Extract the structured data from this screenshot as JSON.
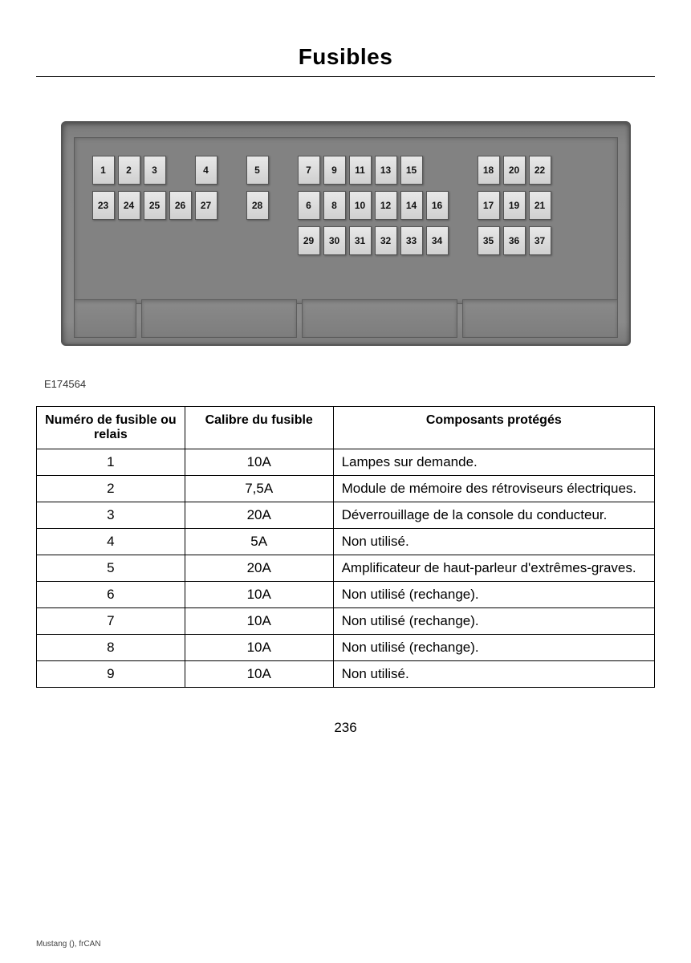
{
  "title": "Fusibles",
  "diagram": {
    "label": "E174564",
    "rows": {
      "top": [
        "1",
        "2",
        "3",
        "",
        "4",
        "",
        "5",
        "",
        "7",
        "9",
        "11",
        "13",
        "15",
        "",
        "",
        "18",
        "20",
        "22"
      ],
      "mid": [
        "23",
        "24",
        "25",
        "26",
        "27",
        "",
        "28",
        "",
        "6",
        "8",
        "10",
        "12",
        "14",
        "16",
        "",
        "17",
        "19",
        "21"
      ],
      "bot": [
        "",
        "",
        "",
        "",
        "",
        "",
        "",
        "",
        "29",
        "30",
        "31",
        "32",
        "33",
        "34",
        "",
        "35",
        "36",
        "37"
      ]
    }
  },
  "table": {
    "headers": {
      "num": "Numéro de fusible ou relais",
      "amp": "Calibre du fusible",
      "comp": "Composants protégés"
    },
    "rows": [
      {
        "num": "1",
        "amp": "10A",
        "comp": "Lampes sur demande."
      },
      {
        "num": "2",
        "amp": "7,5A",
        "comp": "Module de mémoire des rétroviseurs électriques."
      },
      {
        "num": "3",
        "amp": "20A",
        "comp": "Déverrouillage de la console du conducteur."
      },
      {
        "num": "4",
        "amp": "5A",
        "comp": "Non utilisé."
      },
      {
        "num": "5",
        "amp": "20A",
        "comp": "Amplificateur de haut-parleur d'extrêmes-graves."
      },
      {
        "num": "6",
        "amp": "10A",
        "comp": "Non utilisé (rechange)."
      },
      {
        "num": "7",
        "amp": "10A",
        "comp": "Non utilisé (rechange)."
      },
      {
        "num": "8",
        "amp": "10A",
        "comp": "Non utilisé (rechange)."
      },
      {
        "num": "9",
        "amp": "10A",
        "comp": "Non utilisé."
      }
    ]
  },
  "page_number": "236",
  "footer": "Mustang (), frCAN",
  "colors": {
    "fusebox_bg": "#868686",
    "fuse_bg": "#d8d8d8",
    "border": "#000000"
  }
}
